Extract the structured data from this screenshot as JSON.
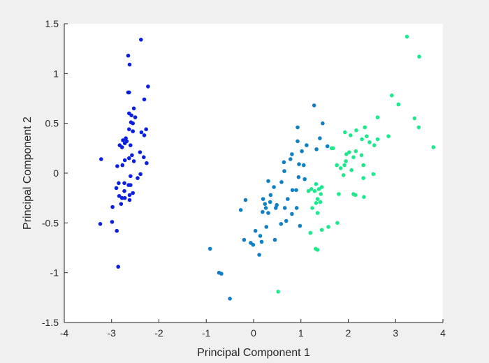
{
  "chart_data": {
    "type": "scatter",
    "xlabel": "Principal Component 1",
    "ylabel": "Principal Component 2",
    "xlim": [
      -4,
      4
    ],
    "ylim": [
      -1.5,
      1.5
    ],
    "xticks": [
      "-4",
      "-3",
      "-2",
      "-1",
      "0",
      "1",
      "2",
      "3",
      "4"
    ],
    "yticks": [
      "-1.5",
      "-1",
      "-0.5",
      "0",
      "0.5",
      "1",
      "1.5"
    ],
    "grid": false,
    "series": [
      {
        "color": "#0a1fe0",
        "points": [
          [
            -2.38,
            1.34
          ],
          [
            -2.65,
            1.18
          ],
          [
            -2.62,
            1.09
          ],
          [
            -2.23,
            0.87
          ],
          [
            -2.65,
            0.81
          ],
          [
            -2.63,
            0.81
          ],
          [
            -2.31,
            0.74
          ],
          [
            -2.53,
            0.65
          ],
          [
            -2.58,
            0.58
          ],
          [
            -2.63,
            0.6
          ],
          [
            -2.5,
            0.56
          ],
          [
            -2.59,
            0.51
          ],
          [
            -2.55,
            0.5
          ],
          [
            -2.63,
            0.44
          ],
          [
            -2.55,
            0.42
          ],
          [
            -2.37,
            0.41
          ],
          [
            -2.27,
            0.44
          ],
          [
            -2.31,
            0.38
          ],
          [
            -2.7,
            0.35
          ],
          [
            -2.76,
            0.33
          ],
          [
            -2.68,
            0.32
          ],
          [
            -2.72,
            0.3
          ],
          [
            -2.6,
            0.28
          ],
          [
            -2.83,
            0.28
          ],
          [
            -2.78,
            0.26
          ],
          [
            -2.4,
            0.21
          ],
          [
            -2.32,
            0.16
          ],
          [
            -2.57,
            0.18
          ],
          [
            -2.63,
            0.15
          ],
          [
            -3.22,
            0.14
          ],
          [
            -2.72,
            0.13
          ],
          [
            -2.53,
            0.12
          ],
          [
            -2.26,
            0.1
          ],
          [
            -2.77,
            0.08
          ],
          [
            -2.88,
            0.07
          ],
          [
            -2.39,
            -0.01
          ],
          [
            -2.6,
            -0.03
          ],
          [
            -2.45,
            -0.05
          ],
          [
            -2.64,
            -0.12
          ],
          [
            -2.73,
            -0.1
          ],
          [
            -2.85,
            -0.1
          ],
          [
            -2.6,
            -0.12
          ],
          [
            -2.9,
            -0.15
          ],
          [
            -2.73,
            -0.18
          ],
          [
            -2.55,
            -0.2
          ],
          [
            -2.62,
            -0.22
          ],
          [
            -2.84,
            -0.23
          ],
          [
            -2.78,
            -0.25
          ],
          [
            -2.72,
            -0.25
          ],
          [
            -2.8,
            -0.31
          ],
          [
            -2.98,
            -0.34
          ],
          [
            -2.62,
            -0.27
          ],
          [
            -3.24,
            -0.51
          ],
          [
            -2.99,
            -0.49
          ],
          [
            -2.89,
            -0.58
          ],
          [
            -2.86,
            -0.94
          ]
        ]
      },
      {
        "color": "#0f7fc6",
        "points": [
          [
            1.28,
            0.68
          ],
          [
            1.46,
            0.5
          ],
          [
            0.93,
            0.46
          ],
          [
            1.4,
            0.35
          ],
          [
            1.12,
            0.28
          ],
          [
            1.56,
            0.27
          ],
          [
            0.93,
            0.32
          ],
          [
            1.02,
            0.22
          ],
          [
            1.33,
            0.24
          ],
          [
            0.81,
            0.19
          ],
          [
            1.06,
            0.08
          ],
          [
            0.78,
            0.14
          ],
          [
            0.64,
            0.11
          ],
          [
            0.96,
            0.09
          ],
          [
            0.65,
            0.02
          ],
          [
            1.08,
            -0.06
          ],
          [
            0.95,
            -0.04
          ],
          [
            0.59,
            -0.09
          ],
          [
            0.31,
            -0.08
          ],
          [
            0.82,
            -0.17
          ],
          [
            0.9,
            -0.17
          ],
          [
            0.43,
            -0.14
          ],
          [
            0.2,
            -0.26
          ],
          [
            0.36,
            -0.22
          ],
          [
            0.49,
            -0.32
          ],
          [
            0.72,
            -0.26
          ],
          [
            -0.17,
            -0.27
          ],
          [
            0.35,
            -0.29
          ],
          [
            0.24,
            -0.31
          ],
          [
            0.26,
            -0.35
          ],
          [
            0.31,
            -0.4
          ],
          [
            0.47,
            -0.35
          ],
          [
            0.66,
            -0.35
          ],
          [
            0.91,
            -0.35
          ],
          [
            0.19,
            -0.39
          ],
          [
            0.81,
            -0.41
          ],
          [
            0.69,
            -0.48
          ],
          [
            -0.27,
            -0.37
          ],
          [
            0.58,
            -0.51
          ],
          [
            0.27,
            -0.54
          ],
          [
            0.98,
            -0.53
          ],
          [
            0.04,
            -0.58
          ],
          [
            0.14,
            -0.63
          ],
          [
            -0.2,
            -0.67
          ],
          [
            0.45,
            -0.67
          ],
          [
            -0.06,
            -0.7
          ],
          [
            -0.01,
            -0.72
          ],
          [
            0.17,
            -0.69
          ],
          [
            -0.92,
            -0.76
          ],
          [
            0.12,
            -0.82
          ],
          [
            -0.73,
            -1.0
          ],
          [
            -0.68,
            -1.01
          ],
          [
            -0.5,
            -1.26
          ]
        ]
      },
      {
        "color": "#1ee88c",
        "points": [
          [
            3.24,
            1.37
          ],
          [
            3.5,
            1.17
          ],
          [
            2.92,
            0.78
          ],
          [
            3.06,
            0.69
          ],
          [
            2.62,
            0.56
          ],
          [
            3.4,
            0.55
          ],
          [
            3.49,
            0.46
          ],
          [
            2.35,
            0.46
          ],
          [
            2.17,
            0.43
          ],
          [
            1.93,
            0.41
          ],
          [
            2.39,
            0.37
          ],
          [
            2.85,
            0.37
          ],
          [
            2.05,
            0.38
          ],
          [
            2.29,
            0.34
          ],
          [
            2.55,
            0.28
          ],
          [
            2.62,
            0.34
          ],
          [
            2.45,
            0.31
          ],
          [
            3.8,
            0.26
          ],
          [
            2.16,
            0.22
          ],
          [
            2.02,
            0.21
          ],
          [
            1.96,
            0.19
          ],
          [
            1.68,
            0.25
          ],
          [
            2.28,
            0.18
          ],
          [
            1.65,
            0.25
          ],
          [
            1.95,
            0.12
          ],
          [
            2.11,
            0.16
          ],
          [
            1.76,
            0.08
          ],
          [
            1.92,
            0.08
          ],
          [
            2.32,
            0.08
          ],
          [
            2.07,
            0.03
          ],
          [
            1.84,
            0.05
          ],
          [
            1.9,
            -0.02
          ],
          [
            2.53,
            -0.01
          ],
          [
            2.32,
            -0.05
          ],
          [
            1.32,
            -0.11
          ],
          [
            1.44,
            -0.14
          ],
          [
            1.22,
            -0.16
          ],
          [
            1.29,
            -0.18
          ],
          [
            1.16,
            -0.18
          ],
          [
            1.38,
            -0.16
          ],
          [
            1.8,
            -0.21
          ],
          [
            2.11,
            -0.21
          ],
          [
            2.15,
            -0.22
          ],
          [
            1.42,
            -0.21
          ],
          [
            2.33,
            -0.24
          ],
          [
            1.35,
            -0.26
          ],
          [
            1.32,
            -0.3
          ],
          [
            1.41,
            -0.29
          ],
          [
            1.24,
            -0.35
          ],
          [
            1.35,
            -0.4
          ],
          [
            1.77,
            -0.5
          ],
          [
            1.58,
            -0.54
          ],
          [
            1.44,
            -0.57
          ],
          [
            1.2,
            -0.6
          ],
          [
            1.31,
            -0.76
          ],
          [
            1.35,
            -0.77
          ],
          [
            0.52,
            -1.19
          ]
        ]
      }
    ]
  }
}
